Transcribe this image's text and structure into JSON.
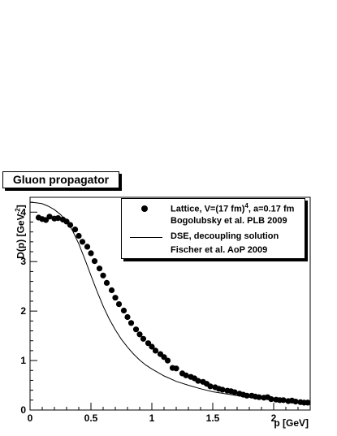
{
  "chart_data": {
    "type": "scatter",
    "title": "Gluon propagator",
    "xlabel": "p [GeV]",
    "ylabel": "D(p) [GeV",
    "ylabel_sup": "-2",
    "ylabel_end": "]",
    "xlim": [
      0,
      2.3
    ],
    "ylim": [
      0,
      4.3
    ],
    "x_ticks": [
      0,
      0.5,
      1,
      1.5,
      2
    ],
    "x_tick_labels": [
      "0",
      "0.5",
      "1",
      "1.5",
      "2"
    ],
    "y_ticks": [
      0,
      1,
      2,
      3,
      4
    ],
    "y_tick_labels": [
      "0",
      "1",
      "2",
      "3",
      "4"
    ],
    "legend": {
      "entry1_main": "Lattice, V=(17 fm)",
      "entry1_sup": "4",
      "entry1_end": ", a=0.17 fm",
      "entry1_sub": "Bogolubsky et al. PLB 2009",
      "entry2_main": "DSE, decoupling solution",
      "entry2_sub": "Fischer et al. AoP 2009"
    },
    "series": [
      {
        "style": "markers",
        "points": [
          [
            0.07,
            3.89
          ],
          [
            0.1,
            3.86
          ],
          [
            0.13,
            3.84
          ],
          [
            0.16,
            3.91
          ],
          [
            0.2,
            3.87
          ],
          [
            0.23,
            3.88
          ],
          [
            0.27,
            3.85
          ],
          [
            0.3,
            3.81
          ],
          [
            0.33,
            3.74
          ],
          [
            0.37,
            3.65
          ],
          [
            0.4,
            3.52
          ],
          [
            0.43,
            3.4
          ],
          [
            0.47,
            3.3
          ],
          [
            0.5,
            3.17
          ],
          [
            0.53,
            3.01
          ],
          [
            0.57,
            2.86
          ],
          [
            0.6,
            2.72
          ],
          [
            0.63,
            2.57
          ],
          [
            0.67,
            2.42
          ],
          [
            0.7,
            2.27
          ],
          [
            0.73,
            2.14
          ],
          [
            0.77,
            2.01
          ],
          [
            0.8,
            1.88
          ],
          [
            0.83,
            1.76
          ],
          [
            0.87,
            1.63
          ],
          [
            0.9,
            1.53
          ],
          [
            0.93,
            1.44
          ],
          [
            0.97,
            1.35
          ],
          [
            1.0,
            1.28
          ],
          [
            1.03,
            1.2
          ],
          [
            1.07,
            1.13
          ],
          [
            1.1,
            1.07
          ],
          [
            1.13,
            1.0
          ],
          [
            1.17,
            0.85
          ],
          [
            1.2,
            0.84
          ],
          [
            1.25,
            0.74
          ],
          [
            1.28,
            0.7
          ],
          [
            1.32,
            0.67
          ],
          [
            1.35,
            0.64
          ],
          [
            1.38,
            0.59
          ],
          [
            1.42,
            0.57
          ],
          [
            1.45,
            0.53
          ],
          [
            1.48,
            0.48
          ],
          [
            1.52,
            0.46
          ],
          [
            1.55,
            0.43
          ],
          [
            1.58,
            0.41
          ],
          [
            1.62,
            0.39
          ],
          [
            1.65,
            0.38
          ],
          [
            1.68,
            0.36
          ],
          [
            1.72,
            0.33
          ],
          [
            1.75,
            0.31
          ],
          [
            1.78,
            0.29
          ],
          [
            1.82,
            0.29
          ],
          [
            1.85,
            0.27
          ],
          [
            1.88,
            0.26
          ],
          [
            1.92,
            0.25
          ],
          [
            1.95,
            0.26
          ],
          [
            1.98,
            0.22
          ],
          [
            2.02,
            0.21
          ],
          [
            2.05,
            0.2
          ],
          [
            2.08,
            0.2
          ],
          [
            2.12,
            0.18
          ],
          [
            2.15,
            0.19
          ],
          [
            2.18,
            0.17
          ],
          [
            2.22,
            0.16
          ],
          [
            2.25,
            0.15
          ],
          [
            2.28,
            0.15
          ]
        ]
      },
      {
        "style": "line",
        "points": [
          [
            0.0,
            4.2
          ],
          [
            0.05,
            4.19
          ],
          [
            0.1,
            4.17
          ],
          [
            0.15,
            4.12
          ],
          [
            0.2,
            4.05
          ],
          [
            0.25,
            3.95
          ],
          [
            0.3,
            3.82
          ],
          [
            0.35,
            3.62
          ],
          [
            0.4,
            3.36
          ],
          [
            0.45,
            3.05
          ],
          [
            0.5,
            2.72
          ],
          [
            0.55,
            2.4
          ],
          [
            0.6,
            2.1
          ],
          [
            0.65,
            1.84
          ],
          [
            0.7,
            1.62
          ],
          [
            0.75,
            1.43
          ],
          [
            0.8,
            1.27
          ],
          [
            0.85,
            1.13
          ],
          [
            0.9,
            1.01
          ],
          [
            0.95,
            0.91
          ],
          [
            1.0,
            0.83
          ],
          [
            1.1,
            0.69
          ],
          [
            1.2,
            0.58
          ],
          [
            1.3,
            0.5
          ],
          [
            1.4,
            0.43
          ],
          [
            1.5,
            0.37
          ],
          [
            1.6,
            0.33
          ],
          [
            1.7,
            0.29
          ],
          [
            1.8,
            0.26
          ],
          [
            1.9,
            0.23
          ],
          [
            2.0,
            0.21
          ],
          [
            2.1,
            0.19
          ],
          [
            2.2,
            0.17
          ],
          [
            2.3,
            0.16
          ]
        ]
      }
    ]
  }
}
